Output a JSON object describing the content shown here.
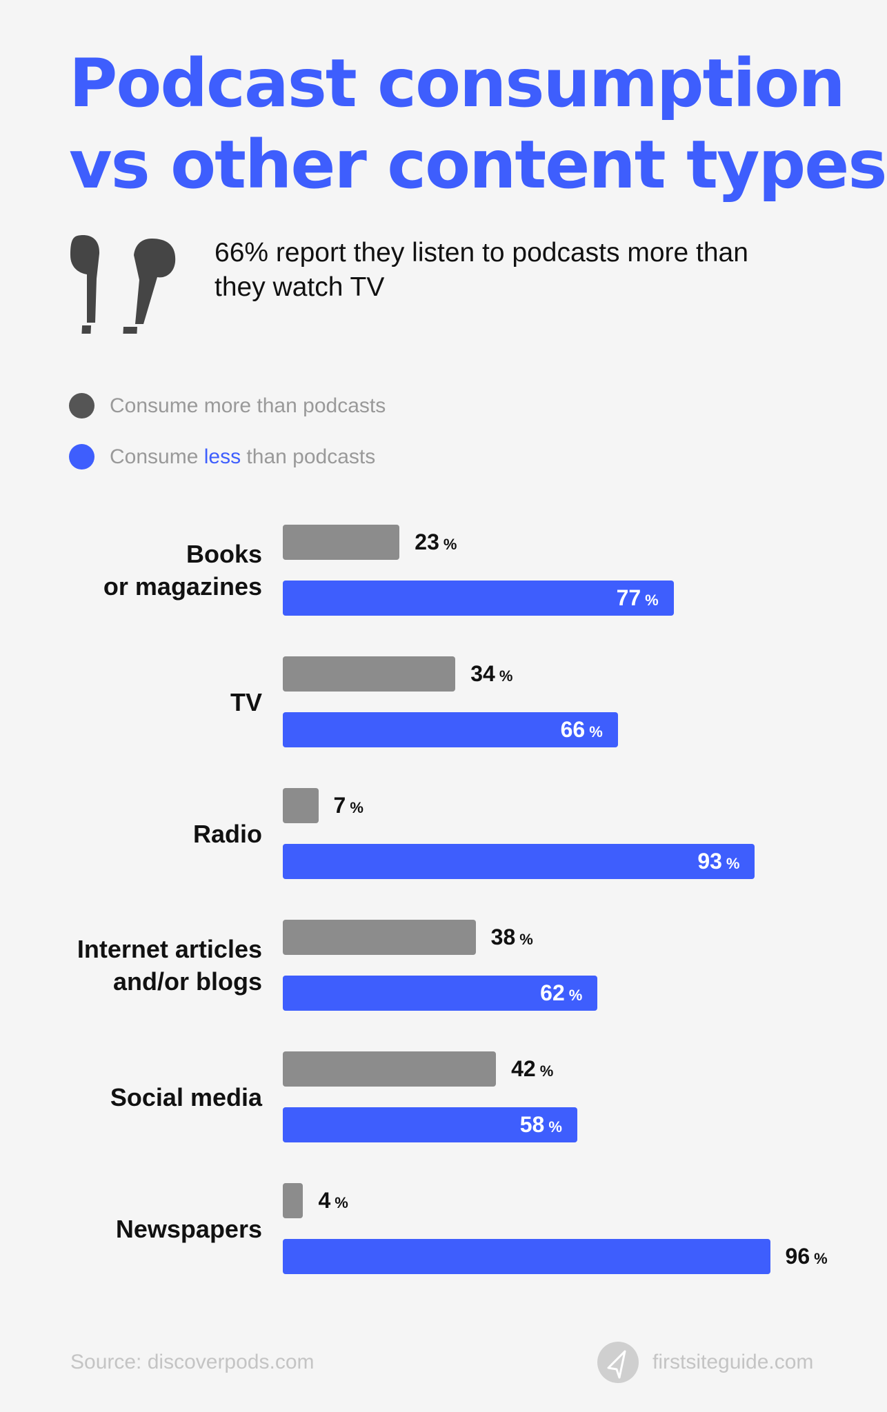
{
  "title_lines": [
    "Podcast consumption",
    "vs other content types"
  ],
  "subtitle": "66% report they listen to podcasts more than they watch TV",
  "icon": "airpods-icon",
  "legend": {
    "more": "Consume more than podcasts",
    "less_prefix": "Consume ",
    "less_highlight": "less",
    "less_suffix": " than podcasts"
  },
  "colors": {
    "more": "#8c8c8c",
    "less": "#3e5efd",
    "title": "#3e5efd",
    "legend_more_dot": "#555555"
  },
  "chart_data": {
    "type": "bar",
    "orientation": "horizontal",
    "unit": "%",
    "categories": [
      [
        "Books",
        "or magazines"
      ],
      [
        "TV"
      ],
      [
        "Radio"
      ],
      [
        "Internet articles",
        "and/or blogs"
      ],
      [
        "Social media"
      ],
      [
        "Newspapers"
      ]
    ],
    "series": [
      {
        "name": "Consume more than podcasts",
        "values": [
          23,
          34,
          7,
          38,
          42,
          4
        ]
      },
      {
        "name": "Consume less than podcasts",
        "values": [
          77,
          66,
          93,
          62,
          58,
          96
        ]
      }
    ],
    "xlim": [
      0,
      100
    ],
    "grid": false,
    "legend_position": "top-left"
  },
  "footer": {
    "source": "Source: discoverpods.com",
    "brand": "firstsiteguide.com",
    "brand_icon": "paper-plane-icon"
  }
}
